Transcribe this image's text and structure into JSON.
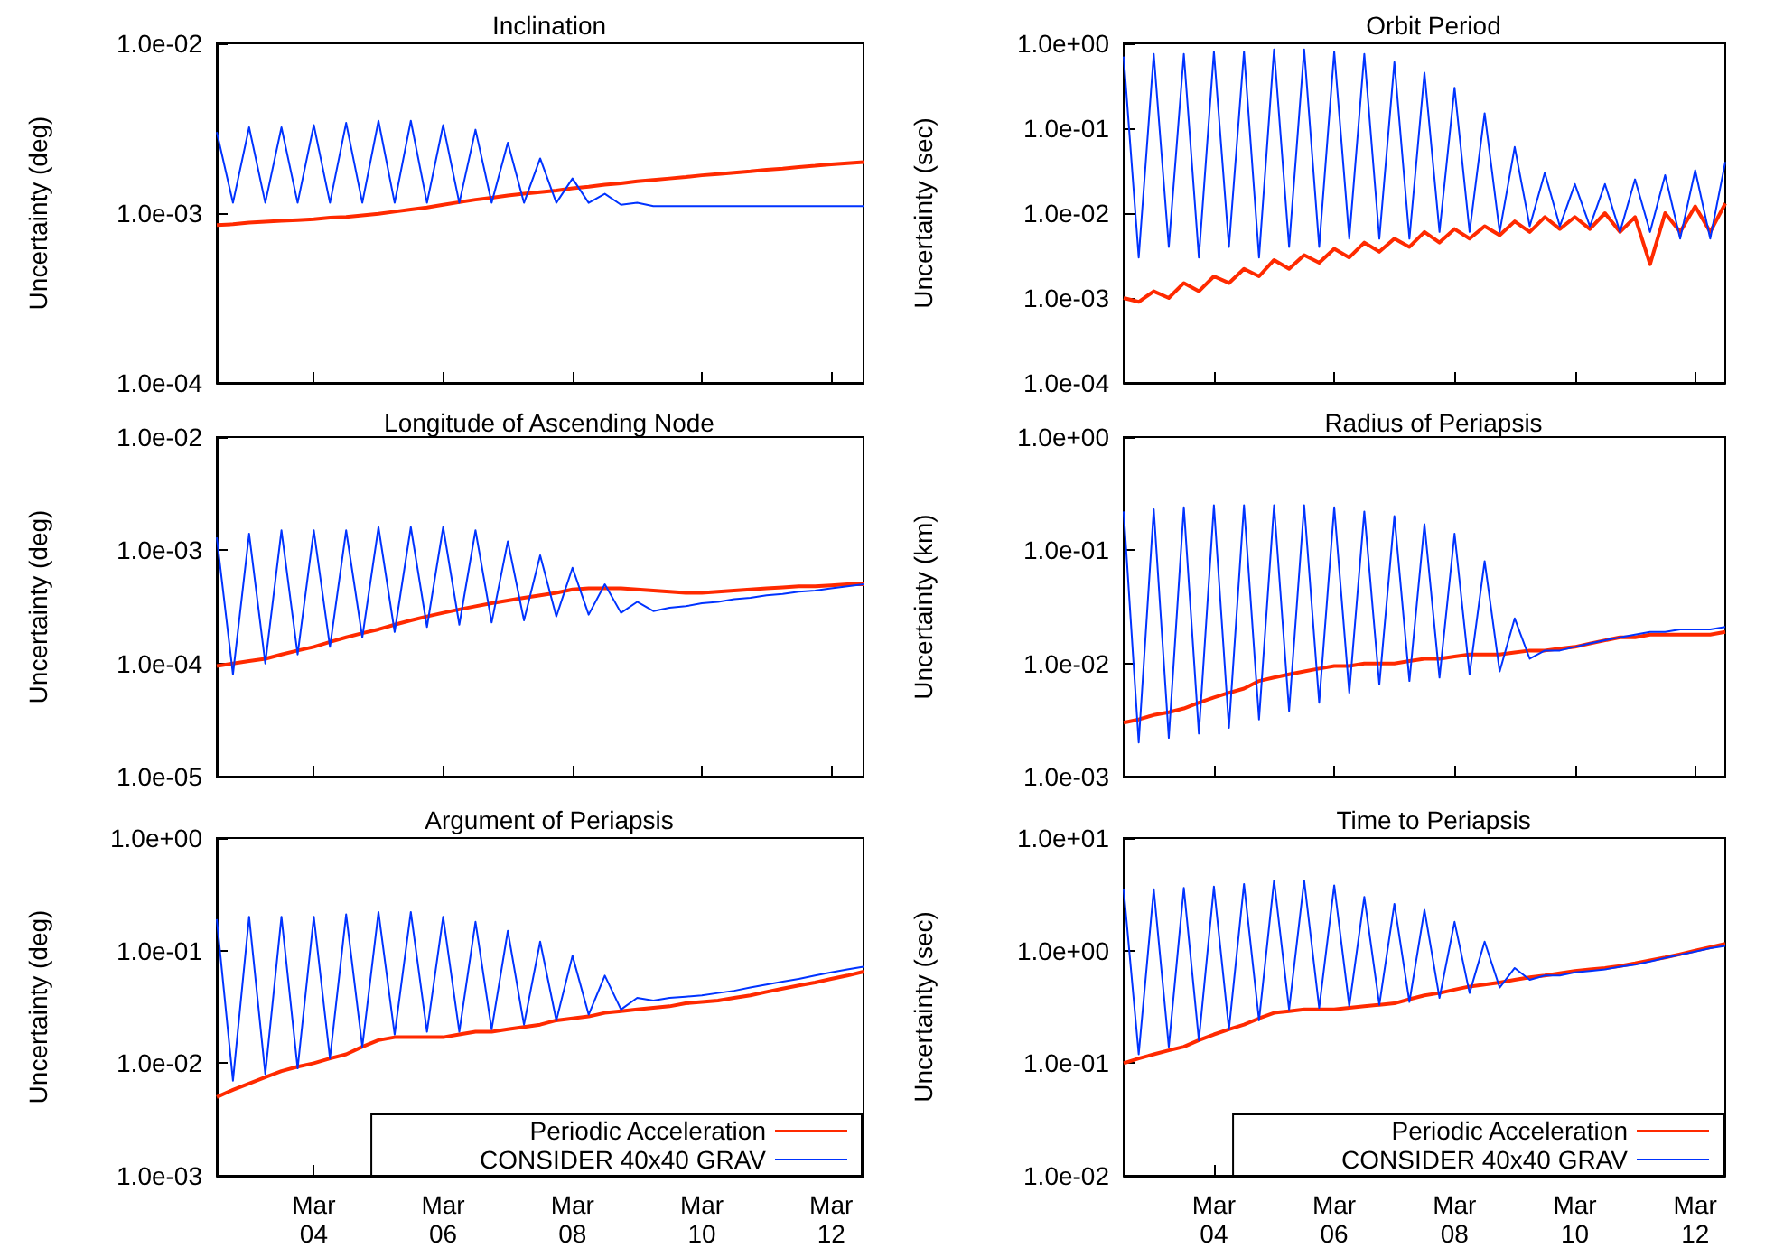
{
  "chart_data": [
    {
      "type": "line",
      "title": "Inclination",
      "ylabel": "Uncertainty (deg)",
      "log": "y",
      "grid": false,
      "legend": false,
      "marker": "none",
      "line_style": "solid",
      "tick_labels": "y",
      "xlim": [
        "--03-02T12:00",
        "--03-12T12:00"
      ],
      "xticks": [
        {
          "value": "--03-04",
          "label": null
        },
        {
          "value": "--03-06",
          "label": null
        },
        {
          "value": "--03-08",
          "label": null
        },
        {
          "value": "--03-10",
          "label": null
        },
        {
          "value": "--03-12",
          "label": null
        }
      ],
      "ylim": [
        0.0001,
        0.01
      ],
      "yticks": [
        {
          "value": 0.0001,
          "label": "1.0e-04"
        },
        {
          "value": 0.001,
          "label": "1.0e-03"
        },
        {
          "value": 0.01,
          "label": "1.0e-02"
        }
      ],
      "x": [
        "--03-02T12:00",
        "--03-02T18:00",
        "--03-03T00:00",
        "--03-03T06:00",
        "--03-03T12:00",
        "--03-03T18:00",
        "--03-04T00:00",
        "--03-04T06:00",
        "--03-04T12:00",
        "--03-04T18:00",
        "--03-05T00:00",
        "--03-05T06:00",
        "--03-05T12:00",
        "--03-05T18:00",
        "--03-06T00:00",
        "--03-06T06:00",
        "--03-06T12:00",
        "--03-06T18:00",
        "--03-07T00:00",
        "--03-07T06:00",
        "--03-07T12:00",
        "--03-07T18:00",
        "--03-08T00:00",
        "--03-08T06:00",
        "--03-08T12:00",
        "--03-08T18:00",
        "--03-09T00:00",
        "--03-09T06:00",
        "--03-09T12:00",
        "--03-09T18:00",
        "--03-10T00:00",
        "--03-10T06:00",
        "--03-10T12:00",
        "--03-10T18:00",
        "--03-11T00:00",
        "--03-11T06:00",
        "--03-11T12:00",
        "--03-11T18:00",
        "--03-12T00:00",
        "--03-12T06:00",
        "--03-12T12:00"
      ],
      "series": [
        {
          "color": "#ff2a00",
          "values": [
            0.00085,
            0.00086,
            0.00088,
            0.00089,
            0.0009,
            0.00091,
            0.00092,
            0.00094,
            0.00095,
            0.00097,
            0.00099,
            0.00102,
            0.00105,
            0.00108,
            0.00112,
            0.00116,
            0.0012,
            0.00123,
            0.00127,
            0.0013,
            0.00133,
            0.00136,
            0.0014,
            0.00143,
            0.00147,
            0.0015,
            0.00154,
            0.00157,
            0.0016,
            0.00163,
            0.00167,
            0.0017,
            0.00173,
            0.00176,
            0.0018,
            0.00183,
            0.00187,
            0.0019,
            0.00194,
            0.00197,
            0.002
          ]
        },
        {
          "color": "#0033ff",
          "values": [
            0.003,
            0.00115,
            0.0032,
            0.00115,
            0.0032,
            0.00115,
            0.0033,
            0.00115,
            0.0034,
            0.00115,
            0.0035,
            0.00115,
            0.0035,
            0.00115,
            0.0033,
            0.00115,
            0.0031,
            0.00115,
            0.0026,
            0.00115,
            0.0021,
            0.00115,
            0.0016,
            0.00115,
            0.0013,
            0.00112,
            0.00115,
            0.0011,
            0.0011,
            0.0011,
            0.0011,
            0.0011,
            0.0011,
            0.0011,
            0.0011,
            0.0011,
            0.0011,
            0.0011,
            0.0011,
            0.0011,
            0.0011
          ]
        }
      ]
    },
    {
      "type": "line",
      "title": "Orbit Period",
      "ylabel": "Uncertainty (sec)",
      "log": "y",
      "grid": false,
      "legend": false,
      "marker": "none",
      "line_style": "solid",
      "tick_labels": "y",
      "xlim": [
        "--03-02T12:00",
        "--03-12T12:00"
      ],
      "xticks": [
        {
          "value": "--03-04",
          "label": null
        },
        {
          "value": "--03-06",
          "label": null
        },
        {
          "value": "--03-08",
          "label": null
        },
        {
          "value": "--03-10",
          "label": null
        },
        {
          "value": "--03-12",
          "label": null
        }
      ],
      "ylim": [
        0.0001,
        1
      ],
      "yticks": [
        {
          "value": 0.0001,
          "label": "1.0e-04"
        },
        {
          "value": 0.001,
          "label": "1.0e-03"
        },
        {
          "value": 0.01,
          "label": "1.0e-02"
        },
        {
          "value": 0.1,
          "label": "1.0e-01"
        },
        {
          "value": 1,
          "label": "1.0e+00"
        }
      ],
      "x": [
        "--03-02T12:00",
        "--03-02T18:00",
        "--03-03T00:00",
        "--03-03T06:00",
        "--03-03T12:00",
        "--03-03T18:00",
        "--03-04T00:00",
        "--03-04T06:00",
        "--03-04T12:00",
        "--03-04T18:00",
        "--03-05T00:00",
        "--03-05T06:00",
        "--03-05T12:00",
        "--03-05T18:00",
        "--03-06T00:00",
        "--03-06T06:00",
        "--03-06T12:00",
        "--03-06T18:00",
        "--03-07T00:00",
        "--03-07T06:00",
        "--03-07T12:00",
        "--03-07T18:00",
        "--03-08T00:00",
        "--03-08T06:00",
        "--03-08T12:00",
        "--03-08T18:00",
        "--03-09T00:00",
        "--03-09T06:00",
        "--03-09T12:00",
        "--03-09T18:00",
        "--03-10T00:00",
        "--03-10T06:00",
        "--03-10T12:00",
        "--03-10T18:00",
        "--03-11T00:00",
        "--03-11T06:00",
        "--03-11T12:00",
        "--03-11T18:00",
        "--03-12T00:00",
        "--03-12T06:00",
        "--03-12T12:00"
      ],
      "series": [
        {
          "color": "#ff2a00",
          "values": [
            0.001,
            0.0009,
            0.0012,
            0.001,
            0.0015,
            0.0012,
            0.0018,
            0.0015,
            0.0022,
            0.0018,
            0.0028,
            0.0022,
            0.0032,
            0.0026,
            0.0038,
            0.003,
            0.0045,
            0.0035,
            0.005,
            0.004,
            0.006,
            0.0045,
            0.0065,
            0.005,
            0.007,
            0.0055,
            0.008,
            0.006,
            0.009,
            0.0065,
            0.009,
            0.0065,
            0.01,
            0.006,
            0.009,
            0.0025,
            0.01,
            0.006,
            0.012,
            0.006,
            0.013
          ]
        },
        {
          "color": "#0033ff",
          "values": [
            0.7,
            0.003,
            0.75,
            0.004,
            0.75,
            0.003,
            0.8,
            0.004,
            0.8,
            0.003,
            0.85,
            0.004,
            0.85,
            0.004,
            0.8,
            0.005,
            0.75,
            0.005,
            0.6,
            0.005,
            0.45,
            0.006,
            0.3,
            0.006,
            0.15,
            0.006,
            0.06,
            0.007,
            0.03,
            0.007,
            0.022,
            0.007,
            0.022,
            0.006,
            0.025,
            0.006,
            0.028,
            0.005,
            0.032,
            0.005,
            0.04
          ]
        }
      ]
    },
    {
      "type": "line",
      "title": "Longitude of Ascending Node",
      "ylabel": "Uncertainty (deg)",
      "log": "y",
      "grid": false,
      "legend": false,
      "marker": "none",
      "line_style": "solid",
      "tick_labels": "y",
      "xlim": [
        "--03-02T12:00",
        "--03-12T12:00"
      ],
      "xticks": [
        {
          "value": "--03-04",
          "label": null
        },
        {
          "value": "--03-06",
          "label": null
        },
        {
          "value": "--03-08",
          "label": null
        },
        {
          "value": "--03-10",
          "label": null
        },
        {
          "value": "--03-12",
          "label": null
        }
      ],
      "ylim": [
        1e-05,
        0.01
      ],
      "yticks": [
        {
          "value": 1e-05,
          "label": "1.0e-05"
        },
        {
          "value": 0.0001,
          "label": "1.0e-04"
        },
        {
          "value": 0.001,
          "label": "1.0e-03"
        },
        {
          "value": 0.01,
          "label": "1.0e-02"
        }
      ],
      "x": [
        "--03-02T12:00",
        "--03-02T18:00",
        "--03-03T00:00",
        "--03-03T06:00",
        "--03-03T12:00",
        "--03-03T18:00",
        "--03-04T00:00",
        "--03-04T06:00",
        "--03-04T12:00",
        "--03-04T18:00",
        "--03-05T00:00",
        "--03-05T06:00",
        "--03-05T12:00",
        "--03-05T18:00",
        "--03-06T00:00",
        "--03-06T06:00",
        "--03-06T12:00",
        "--03-06T18:00",
        "--03-07T00:00",
        "--03-07T06:00",
        "--03-07T12:00",
        "--03-07T18:00",
        "--03-08T00:00",
        "--03-08T06:00",
        "--03-08T12:00",
        "--03-08T18:00",
        "--03-09T00:00",
        "--03-09T06:00",
        "--03-09T12:00",
        "--03-09T18:00",
        "--03-10T00:00",
        "--03-10T06:00",
        "--03-10T12:00",
        "--03-10T18:00",
        "--03-11T00:00",
        "--03-11T06:00",
        "--03-11T12:00",
        "--03-11T18:00",
        "--03-12T00:00",
        "--03-12T06:00",
        "--03-12T12:00"
      ],
      "series": [
        {
          "color": "#ff2a00",
          "values": [
            9.5e-05,
            0.0001,
            0.000105,
            0.00011,
            0.00012,
            0.00013,
            0.00014,
            0.000155,
            0.00017,
            0.000185,
            0.0002,
            0.00022,
            0.00024,
            0.00026,
            0.00028,
            0.0003,
            0.00032,
            0.00034,
            0.00036,
            0.00038,
            0.0004,
            0.00042,
            0.00045,
            0.00046,
            0.00046,
            0.00046,
            0.00045,
            0.00044,
            0.00043,
            0.00042,
            0.00042,
            0.00043,
            0.00044,
            0.00045,
            0.00046,
            0.00047,
            0.00048,
            0.00048,
            0.00049,
            0.0005,
            0.0005
          ]
        },
        {
          "color": "#0033ff",
          "values": [
            0.0013,
            8e-05,
            0.0014,
            0.0001,
            0.0015,
            0.00012,
            0.0015,
            0.00014,
            0.0015,
            0.00017,
            0.0016,
            0.00019,
            0.0016,
            0.00021,
            0.0016,
            0.00022,
            0.0015,
            0.00023,
            0.0012,
            0.00024,
            0.0009,
            0.00026,
            0.0007,
            0.00027,
            0.0005,
            0.00028,
            0.00035,
            0.00029,
            0.00031,
            0.00032,
            0.00034,
            0.00035,
            0.00037,
            0.00038,
            0.0004,
            0.00041,
            0.00043,
            0.00044,
            0.00046,
            0.00048,
            0.0005
          ]
        }
      ]
    },
    {
      "type": "line",
      "title": "Radius of Periapsis",
      "ylabel": "Uncertainty (km)",
      "log": "y",
      "grid": false,
      "legend": false,
      "marker": "none",
      "line_style": "solid",
      "tick_labels": "y",
      "xlim": [
        "--03-02T12:00",
        "--03-12T12:00"
      ],
      "xticks": [
        {
          "value": "--03-04",
          "label": null
        },
        {
          "value": "--03-06",
          "label": null
        },
        {
          "value": "--03-08",
          "label": null
        },
        {
          "value": "--03-10",
          "label": null
        },
        {
          "value": "--03-12",
          "label": null
        }
      ],
      "ylim": [
        0.001,
        1
      ],
      "yticks": [
        {
          "value": 0.001,
          "label": "1.0e-03"
        },
        {
          "value": 0.01,
          "label": "1.0e-02"
        },
        {
          "value": 0.1,
          "label": "1.0e-01"
        },
        {
          "value": 1,
          "label": "1.0e+00"
        }
      ],
      "x": [
        "--03-02T12:00",
        "--03-02T18:00",
        "--03-03T00:00",
        "--03-03T06:00",
        "--03-03T12:00",
        "--03-03T18:00",
        "--03-04T00:00",
        "--03-04T06:00",
        "--03-04T12:00",
        "--03-04T18:00",
        "--03-05T00:00",
        "--03-05T06:00",
        "--03-05T12:00",
        "--03-05T18:00",
        "--03-06T00:00",
        "--03-06T06:00",
        "--03-06T12:00",
        "--03-06T18:00",
        "--03-07T00:00",
        "--03-07T06:00",
        "--03-07T12:00",
        "--03-07T18:00",
        "--03-08T00:00",
        "--03-08T06:00",
        "--03-08T12:00",
        "--03-08T18:00",
        "--03-09T00:00",
        "--03-09T06:00",
        "--03-09T12:00",
        "--03-09T18:00",
        "--03-10T00:00",
        "--03-10T06:00",
        "--03-10T12:00",
        "--03-10T18:00",
        "--03-11T00:00",
        "--03-11T06:00",
        "--03-11T12:00",
        "--03-11T18:00",
        "--03-12T00:00",
        "--03-12T06:00",
        "--03-12T12:00"
      ],
      "series": [
        {
          "color": "#ff2a00",
          "values": [
            0.003,
            0.0032,
            0.0035,
            0.0037,
            0.004,
            0.0045,
            0.005,
            0.0055,
            0.006,
            0.007,
            0.0075,
            0.008,
            0.0085,
            0.009,
            0.0095,
            0.0095,
            0.01,
            0.01,
            0.01,
            0.0105,
            0.011,
            0.011,
            0.0115,
            0.012,
            0.012,
            0.012,
            0.0125,
            0.013,
            0.013,
            0.0135,
            0.014,
            0.015,
            0.016,
            0.017,
            0.017,
            0.018,
            0.018,
            0.018,
            0.018,
            0.018,
            0.019
          ]
        },
        {
          "color": "#0033ff",
          "values": [
            0.22,
            0.002,
            0.23,
            0.0022,
            0.24,
            0.0024,
            0.25,
            0.0027,
            0.25,
            0.0032,
            0.25,
            0.0038,
            0.25,
            0.0045,
            0.24,
            0.0055,
            0.22,
            0.0065,
            0.2,
            0.007,
            0.17,
            0.0075,
            0.14,
            0.008,
            0.08,
            0.0085,
            0.025,
            0.011,
            0.013,
            0.013,
            0.014,
            0.015,
            0.016,
            0.017,
            0.018,
            0.019,
            0.019,
            0.02,
            0.02,
            0.02,
            0.021
          ]
        }
      ]
    },
    {
      "type": "line",
      "title": "Argument of Periapsis",
      "ylabel": "Uncertainty (deg)",
      "log": "y",
      "grid": false,
      "legend": "bottom right",
      "marker": "none",
      "line_style": "solid",
      "xlim": [
        "--03-02T12:00",
        "--03-12T12:00"
      ],
      "xticks": [
        {
          "value": "--03-04",
          "label": "Mar\n04"
        },
        {
          "value": "--03-06",
          "label": "Mar\n06"
        },
        {
          "value": "--03-08",
          "label": "Mar\n08"
        },
        {
          "value": "--03-10",
          "label": "Mar\n10"
        },
        {
          "value": "--03-12",
          "label": "Mar\n12"
        }
      ],
      "ylim": [
        0.001,
        1
      ],
      "yticks": [
        {
          "value": 0.001,
          "label": "1.0e-03"
        },
        {
          "value": 0.01,
          "label": "1.0e-02"
        },
        {
          "value": 0.1,
          "label": "1.0e-01"
        },
        {
          "value": 1,
          "label": "1.0e+00"
        }
      ],
      "x": [
        "--03-02T12:00",
        "--03-02T18:00",
        "--03-03T00:00",
        "--03-03T06:00",
        "--03-03T12:00",
        "--03-03T18:00",
        "--03-04T00:00",
        "--03-04T06:00",
        "--03-04T12:00",
        "--03-04T18:00",
        "--03-05T00:00",
        "--03-05T06:00",
        "--03-05T12:00",
        "--03-05T18:00",
        "--03-06T00:00",
        "--03-06T06:00",
        "--03-06T12:00",
        "--03-06T18:00",
        "--03-07T00:00",
        "--03-07T06:00",
        "--03-07T12:00",
        "--03-07T18:00",
        "--03-08T00:00",
        "--03-08T06:00",
        "--03-08T12:00",
        "--03-08T18:00",
        "--03-09T00:00",
        "--03-09T06:00",
        "--03-09T12:00",
        "--03-09T18:00",
        "--03-10T00:00",
        "--03-10T06:00",
        "--03-10T12:00",
        "--03-10T18:00",
        "--03-11T00:00",
        "--03-11T06:00",
        "--03-11T12:00",
        "--03-11T18:00",
        "--03-12T00:00",
        "--03-12T06:00",
        "--03-12T12:00"
      ],
      "series": [
        {
          "name": "Periodic Acceleration",
          "color": "#ff2a00",
          "values": [
            0.005,
            0.0058,
            0.0066,
            0.0075,
            0.0085,
            0.0093,
            0.01,
            0.011,
            0.012,
            0.014,
            0.016,
            0.017,
            0.017,
            0.017,
            0.017,
            0.018,
            0.019,
            0.019,
            0.02,
            0.021,
            0.022,
            0.024,
            0.025,
            0.026,
            0.028,
            0.029,
            0.03,
            0.031,
            0.032,
            0.034,
            0.035,
            0.036,
            0.038,
            0.04,
            0.043,
            0.046,
            0.049,
            0.052,
            0.056,
            0.06,
            0.065
          ]
        },
        {
          "name": "CONSIDER 40x40 GRAV",
          "color": "#0033ff",
          "values": [
            0.19,
            0.007,
            0.2,
            0.008,
            0.2,
            0.009,
            0.2,
            0.011,
            0.21,
            0.014,
            0.22,
            0.018,
            0.22,
            0.019,
            0.2,
            0.019,
            0.18,
            0.02,
            0.15,
            0.022,
            0.12,
            0.024,
            0.09,
            0.027,
            0.06,
            0.03,
            0.038,
            0.036,
            0.038,
            0.039,
            0.04,
            0.042,
            0.044,
            0.047,
            0.05,
            0.053,
            0.056,
            0.06,
            0.064,
            0.068,
            0.072
          ]
        }
      ]
    },
    {
      "type": "line",
      "title": "Time to Periapsis",
      "ylabel": "Uncertainty (sec)",
      "log": "y",
      "grid": false,
      "legend": "bottom right",
      "marker": "none",
      "line_style": "solid",
      "xlim": [
        "--03-02T12:00",
        "--03-12T12:00"
      ],
      "xticks": [
        {
          "value": "--03-04",
          "label": "Mar\n04"
        },
        {
          "value": "--03-06",
          "label": "Mar\n06"
        },
        {
          "value": "--03-08",
          "label": "Mar\n08"
        },
        {
          "value": "--03-10",
          "label": "Mar\n10"
        },
        {
          "value": "--03-12",
          "label": "Mar\n12"
        }
      ],
      "ylim": [
        0.01,
        10
      ],
      "yticks": [
        {
          "value": 0.01,
          "label": "1.0e-02"
        },
        {
          "value": 0.1,
          "label": "1.0e-01"
        },
        {
          "value": 1,
          "label": "1.0e+00"
        },
        {
          "value": 10,
          "label": "1.0e+01"
        }
      ],
      "x": [
        "--03-02T12:00",
        "--03-02T18:00",
        "--03-03T00:00",
        "--03-03T06:00",
        "--03-03T12:00",
        "--03-03T18:00",
        "--03-04T00:00",
        "--03-04T06:00",
        "--03-04T12:00",
        "--03-04T18:00",
        "--03-05T00:00",
        "--03-05T06:00",
        "--03-05T12:00",
        "--03-05T18:00",
        "--03-06T00:00",
        "--03-06T06:00",
        "--03-06T12:00",
        "--03-06T18:00",
        "--03-07T00:00",
        "--03-07T06:00",
        "--03-07T12:00",
        "--03-07T18:00",
        "--03-08T00:00",
        "--03-08T06:00",
        "--03-08T12:00",
        "--03-08T18:00",
        "--03-09T00:00",
        "--03-09T06:00",
        "--03-09T12:00",
        "--03-09T18:00",
        "--03-10T00:00",
        "--03-10T06:00",
        "--03-10T12:00",
        "--03-10T18:00",
        "--03-11T00:00",
        "--03-11T06:00",
        "--03-11T12:00",
        "--03-11T18:00",
        "--03-12T00:00",
        "--03-12T06:00",
        "--03-12T12:00"
      ],
      "series": [
        {
          "name": "Periodic Acceleration",
          "color": "#ff2a00",
          "values": [
            0.1,
            0.11,
            0.12,
            0.13,
            0.14,
            0.16,
            0.18,
            0.2,
            0.22,
            0.25,
            0.28,
            0.29,
            0.3,
            0.3,
            0.3,
            0.31,
            0.32,
            0.33,
            0.34,
            0.37,
            0.4,
            0.42,
            0.45,
            0.48,
            0.5,
            0.52,
            0.55,
            0.58,
            0.6,
            0.63,
            0.66,
            0.68,
            0.7,
            0.73,
            0.77,
            0.82,
            0.87,
            0.93,
            1.0,
            1.07,
            1.15
          ]
        },
        {
          "name": "CONSIDER 40x40 GRAV",
          "color": "#0033ff",
          "values": [
            3.5,
            0.12,
            3.5,
            0.14,
            3.6,
            0.16,
            3.7,
            0.2,
            3.9,
            0.24,
            4.2,
            0.3,
            4.2,
            0.31,
            3.8,
            0.32,
            3.0,
            0.33,
            2.6,
            0.35,
            2.3,
            0.38,
            1.8,
            0.42,
            1.2,
            0.47,
            0.7,
            0.55,
            0.6,
            0.6,
            0.64,
            0.66,
            0.68,
            0.72,
            0.75,
            0.8,
            0.86,
            0.92,
            0.98,
            1.05,
            1.1
          ]
        }
      ]
    }
  ]
}
